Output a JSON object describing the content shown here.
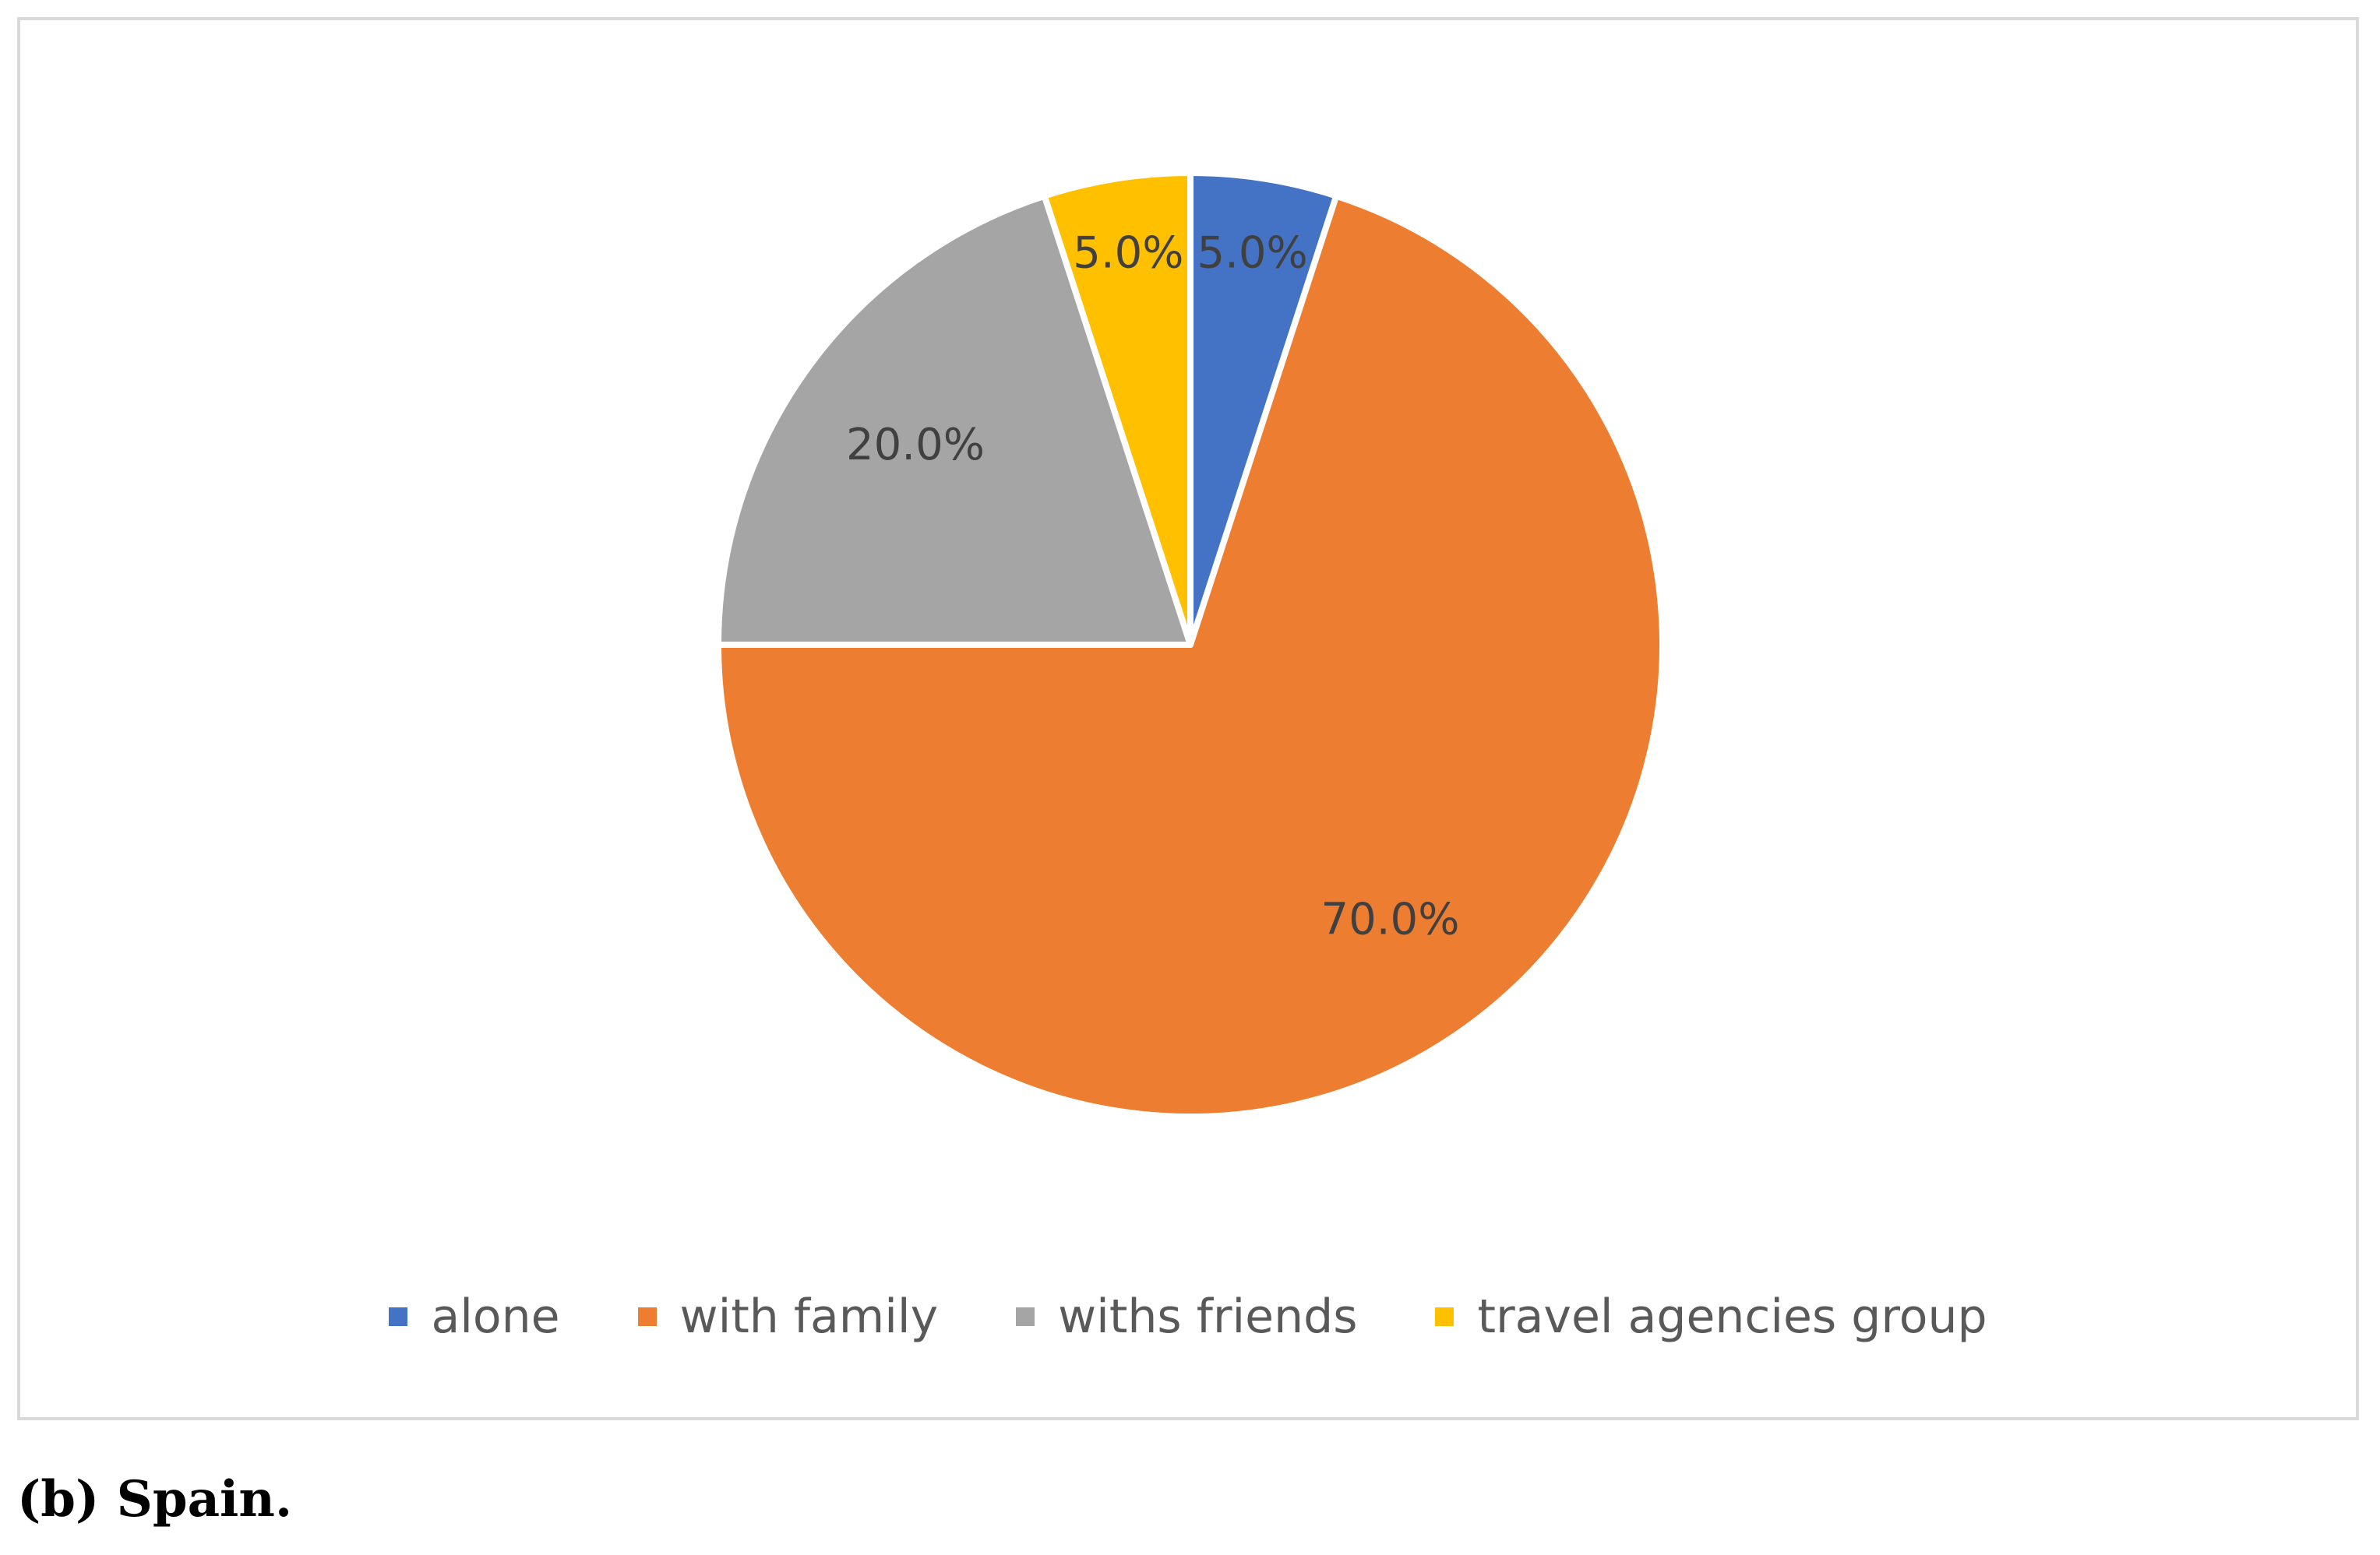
{
  "chart_data": {
    "type": "pie",
    "title": "",
    "categories": [
      "alone",
      "with family",
      "withs friends",
      "travel agencies group"
    ],
    "values": [
      5.0,
      70.0,
      20.0,
      5.0
    ],
    "data_labels": [
      "5.0%",
      "70.0%",
      "20.0%",
      "5.0%"
    ],
    "colors": [
      "#4472C4",
      "#ED7D31",
      "#A5A5A5",
      "#FFC000"
    ],
    "start_angle": "12 o'clock",
    "direction": "clockwise",
    "legend_position": "bottom",
    "legend": [
      {
        "label": "alone",
        "color": "#4472C4"
      },
      {
        "label": "with family",
        "color": "#ED7D31"
      },
      {
        "label": "withs friends",
        "color": "#A5A5A5"
      },
      {
        "label": "travel agencies group",
        "color": "#FFC000"
      }
    ]
  },
  "caption": "(b) Spain."
}
